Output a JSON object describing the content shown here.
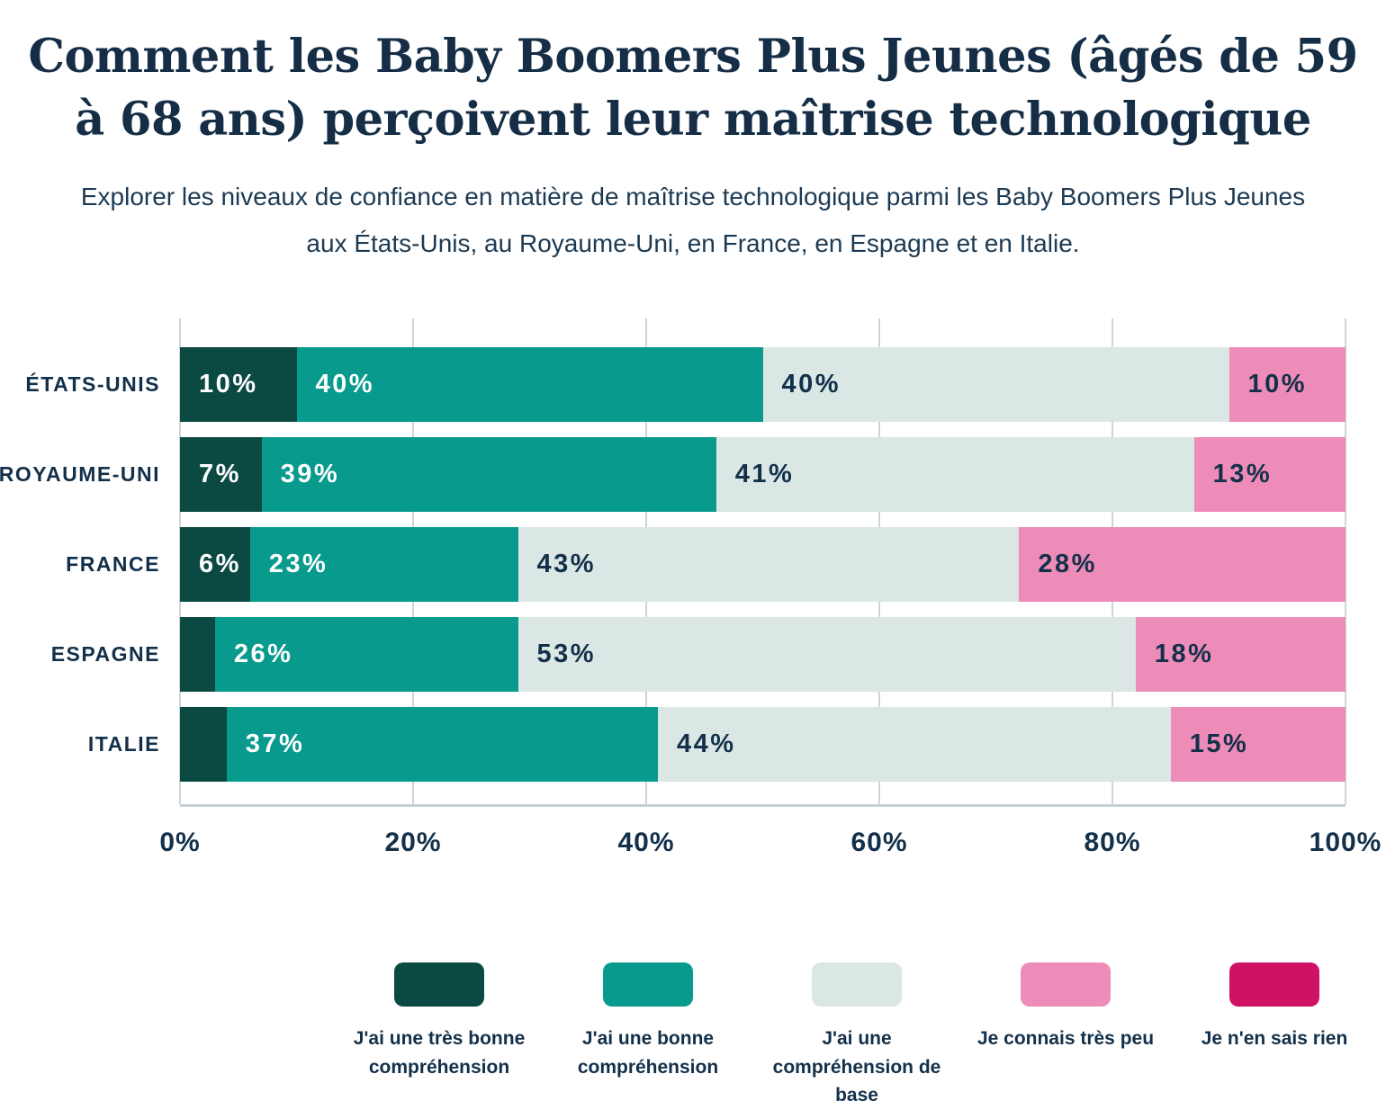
{
  "title": "Comment les Baby Boomers Plus Jeunes (âgés de 59 à 68 ans) perçoivent leur maîtrise technologique",
  "subtitle": "Explorer les niveaux de confiance en matière de maîtrise technologique parmi les Baby Boomers Plus Jeunes aux États-Unis, au Royaume-Uni, en France, en Espagne et en Italie.",
  "chart_data": {
    "type": "bar",
    "orientation": "horizontal",
    "stacked": true,
    "categories": [
      "ÉTATS-UNIS",
      "ROYAUME-UNI",
      "FRANCE",
      "ESPAGNE",
      "ITALIE"
    ],
    "series": [
      {
        "name": "J'ai une très bonne compréhension",
        "color": "#0b4a42",
        "label_color": "#ffffff",
        "values": [
          10,
          7,
          6,
          3,
          4
        ]
      },
      {
        "name": "J'ai une bonne compréhension",
        "color": "#079a8d",
        "label_color": "#ffffff",
        "values": [
          40,
          39,
          23,
          26,
          37
        ]
      },
      {
        "name": "J'ai une compréhension de base",
        "color": "#dae7e5",
        "label_color": "#13304a",
        "values": [
          40,
          41,
          43,
          53,
          44
        ]
      },
      {
        "name": "Je connais très peu",
        "color": "#ee8cb9",
        "label_color": "#13304a",
        "values": [
          10,
          13,
          28,
          18,
          15
        ]
      },
      {
        "name": "Je n'en sais rien",
        "color": "#d01264",
        "label_color": "#ffffff",
        "values": [
          0,
          0,
          0,
          0,
          0
        ]
      }
    ],
    "x_ticks": [
      "0%",
      "20%",
      "40%",
      "60%",
      "80%",
      "100%"
    ],
    "xlim": [
      0,
      100
    ],
    "value_suffix": "%",
    "label_min_value": 5,
    "grid": true,
    "legend_position": "bottom"
  },
  "colors": {
    "background": "#ffffff",
    "title_text": "#152e46",
    "subtitle_text": "#1c3a53",
    "axis_text": "#13304a",
    "gridline": "#ccd6d8"
  }
}
